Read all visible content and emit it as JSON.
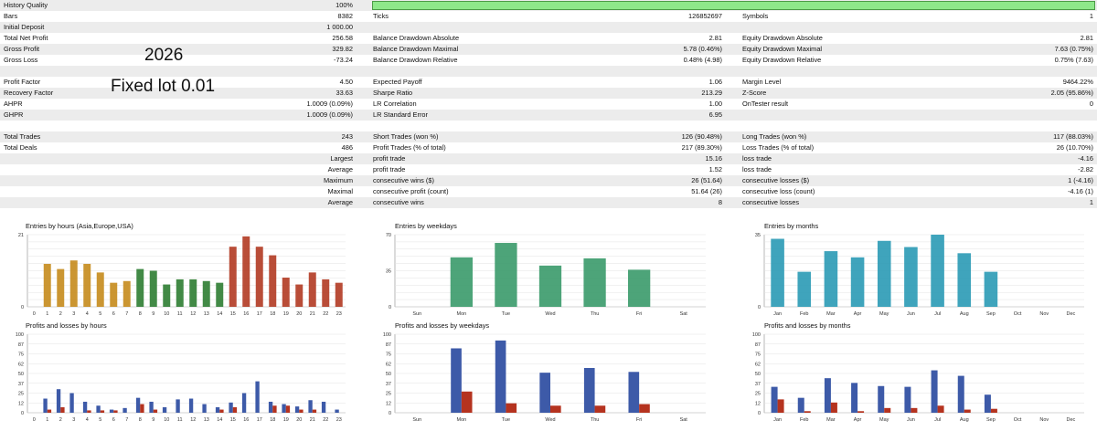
{
  "history_quality": {
    "label": "History Quality",
    "value": "100%"
  },
  "rows": [
    {
      "y": 12,
      "c1": [
        "Bars",
        "8382"
      ],
      "c2": [
        "Ticks",
        "126852697"
      ],
      "c3": [
        "Symbols",
        "1"
      ]
    },
    {
      "y": 24,
      "c1": [
        "Initial Deposit",
        "1 000.00"
      ],
      "c2": [
        "",
        ""
      ],
      "c3": [
        "",
        ""
      ]
    },
    {
      "y": 36,
      "c1": [
        "Total Net Profit",
        "256.58"
      ],
      "c2": [
        "Balance Drawdown Absolute",
        "2.81"
      ],
      "c3": [
        "Equity Drawdown Absolute",
        "2.81"
      ]
    },
    {
      "y": 48,
      "c1": [
        "Gross Profit",
        "329.82"
      ],
      "c2": [
        "Balance Drawdown Maximal",
        "5.78 (0.46%)"
      ],
      "c3": [
        "Equity Drawdown Maximal",
        "7.63 (0.75%)"
      ]
    },
    {
      "y": 60,
      "c1": [
        "Gross Loss",
        "-73.24"
      ],
      "c2": [
        "Balance Drawdown Relative",
        "0.48% (4.98)"
      ],
      "c3": [
        "Equity Drawdown Relative",
        "0.75% (7.63)"
      ]
    },
    {
      "y": 72,
      "c1": [
        "",
        ""
      ],
      "c2": [
        "",
        ""
      ],
      "c3": [
        "",
        ""
      ]
    },
    {
      "y": 84,
      "c1": [
        "Profit Factor",
        "4.50"
      ],
      "c2": [
        "Expected Payoff",
        "1.06"
      ],
      "c3": [
        "Margin Level",
        "9464.22%"
      ]
    },
    {
      "y": 96,
      "c1": [
        "Recovery Factor",
        "33.63"
      ],
      "c2": [
        "Sharpe Ratio",
        "213.29"
      ],
      "c3": [
        "Z-Score",
        "2.05 (95.86%)"
      ]
    },
    {
      "y": 108,
      "c1": [
        "AHPR",
        "1.0009 (0.09%)"
      ],
      "c2": [
        "LR Correlation",
        "1.00"
      ],
      "c3": [
        "OnTester result",
        "0"
      ]
    },
    {
      "y": 120,
      "c1": [
        "GHPR",
        "1.0009 (0.09%)"
      ],
      "c2": [
        "LR Standard Error",
        "6.95"
      ],
      "c3": [
        "",
        ""
      ]
    },
    {
      "y": 132,
      "c1": [
        "",
        ""
      ],
      "c2": [
        "",
        ""
      ],
      "c3": [
        "",
        ""
      ]
    },
    {
      "y": 144,
      "c1": [
        "Total Trades",
        "243"
      ],
      "c2": [
        "Short Trades (won %)",
        "126 (90.48%)"
      ],
      "c3": [
        "Long Trades (won %)",
        "117 (88.03%)"
      ]
    },
    {
      "y": 156,
      "c1": [
        "Total Deals",
        "486"
      ],
      "c2": [
        "Profit Trades (% of total)",
        "217 (89.30%)"
      ],
      "c3": [
        "Loss Trades (% of total)",
        "26 (10.70%)"
      ]
    },
    {
      "y": 168,
      "c1": [
        "",
        "Largest"
      ],
      "c2": [
        "profit trade",
        "15.16"
      ],
      "c3": [
        "loss trade",
        "-4.16"
      ]
    },
    {
      "y": 180,
      "c1": [
        "",
        "Average"
      ],
      "c2": [
        "profit trade",
        "1.52"
      ],
      "c3": [
        "loss trade",
        "-2.82"
      ]
    },
    {
      "y": 192,
      "c1": [
        "",
        "Maximum"
      ],
      "c2": [
        "consecutive wins ($)",
        "26 (51.64)"
      ],
      "c3": [
        "consecutive losses ($)",
        "1 (-4.16)"
      ]
    },
    {
      "y": 204,
      "c1": [
        "",
        "Maximal"
      ],
      "c2": [
        "consecutive profit (count)",
        "51.64 (26)"
      ],
      "c3": [
        "consecutive loss (count)",
        "-4.16 (1)"
      ]
    },
    {
      "y": 216,
      "c1": [
        "",
        "Average"
      ],
      "c2": [
        "consecutive wins",
        "8"
      ],
      "c3": [
        "consecutive losses",
        "1"
      ]
    }
  ],
  "overlay": {
    "year": "2026",
    "lot": "Fixed lot 0.01"
  },
  "charts": {
    "hours": {
      "title": "Entries by hours (Asia,Europe,USA)",
      "ymax": 21,
      "ticks": [
        "21",
        "0"
      ],
      "labels": [
        "0",
        "1",
        "2",
        "3",
        "4",
        "5",
        "6",
        "7",
        "8",
        "9",
        "10",
        "11",
        "12",
        "13",
        "14",
        "15",
        "16",
        "17",
        "18",
        "19",
        "20",
        "21",
        "22",
        "23"
      ],
      "values": [
        0,
        12.5,
        11,
        13.5,
        12.5,
        10,
        7,
        7.5,
        11,
        10.5,
        6.5,
        8,
        8,
        7.5,
        7,
        17.5,
        20.5,
        17.5,
        15,
        8.5,
        6.5,
        10,
        8,
        7
      ],
      "colors": [
        "#c58b1c",
        "#c58b1c",
        "#c58b1c",
        "#c58b1c",
        "#c58b1c",
        "#c58b1c",
        "#c58b1c",
        "#c58b1c",
        "#2e7d32",
        "#2e7d32",
        "#2e7d32",
        "#2e7d32",
        "#2e7d32",
        "#2e7d32",
        "#2e7d32",
        "#b13a22",
        "#b13a22",
        "#b13a22",
        "#b13a22",
        "#b13a22",
        "#b13a22",
        "#b13a22",
        "#b13a22",
        "#b13a22"
      ]
    },
    "weekdays": {
      "title": "Entries by weekdays",
      "ymax": 70,
      "ticks": [
        "70",
        "35",
        "0"
      ],
      "labels": [
        "Sun",
        "Mon",
        "Tue",
        "Wed",
        "Thu",
        "Fri",
        "Sat"
      ],
      "values": [
        0,
        48,
        62,
        40,
        47,
        36,
        0
      ],
      "color": "#3a9a6a"
    },
    "months": {
      "title": "Entries by months",
      "ymax": 35,
      "ticks": [
        "35",
        "0"
      ],
      "labels": [
        "Jan",
        "Feb",
        "Mar",
        "Apr",
        "May",
        "Jun",
        "Jul",
        "Aug",
        "Sep",
        "Oct",
        "Nov",
        "Dec"
      ],
      "values": [
        33,
        17,
        27,
        24,
        32,
        29,
        35,
        26,
        17,
        0,
        0,
        0
      ],
      "color": "#2a9ab5"
    },
    "pl_hours": {
      "title": "Profits and losses by hours",
      "ymax": 100,
      "ticks": [
        "100",
        "87",
        "75",
        "62",
        "50",
        "37",
        "25",
        "12",
        "0"
      ],
      "labels": [
        "0",
        "1",
        "2",
        "3",
        "4",
        "5",
        "6",
        "7",
        "8",
        "9",
        "10",
        "11",
        "12",
        "13",
        "14",
        "15",
        "16",
        "17",
        "18",
        "19",
        "20",
        "21",
        "22",
        "23"
      ],
      "profits": [
        0,
        18,
        30,
        25,
        14,
        9,
        4,
        6,
        19,
        14,
        7,
        17,
        18,
        11,
        7,
        13,
        25,
        40,
        14,
        11,
        8,
        16,
        14,
        4
      ],
      "losses": [
        0,
        4,
        7,
        0,
        3,
        3,
        3,
        0,
        11,
        4,
        0,
        0,
        0,
        0,
        4,
        7,
        0,
        0,
        9,
        9,
        4,
        4,
        0,
        0
      ]
    },
    "pl_weekdays": {
      "title": "Profits and losses by weekdays",
      "ymax": 100,
      "ticks": [
        "100",
        "87",
        "75",
        "62",
        "50",
        "37",
        "25",
        "12",
        "0"
      ],
      "labels": [
        "Sun",
        "Mon",
        "Tue",
        "Wed",
        "Thu",
        "Fri",
        "Sat"
      ],
      "profits": [
        0,
        82,
        92,
        51,
        57,
        52,
        0
      ],
      "losses": [
        0,
        27,
        12,
        9,
        9,
        11,
        0
      ]
    },
    "pl_months": {
      "title": "Profits and losses by months",
      "ymax": 100,
      "ticks": [
        "100",
        "87",
        "75",
        "62",
        "50",
        "37",
        "25",
        "12",
        "0"
      ],
      "labels": [
        "Jan",
        "Feb",
        "Mar",
        "Apr",
        "May",
        "Jun",
        "Jul",
        "Aug",
        "Sep",
        "Oct",
        "Nov",
        "Dec"
      ],
      "profits": [
        33,
        19,
        44,
        38,
        34,
        33,
        54,
        47,
        23,
        0,
        0,
        0
      ],
      "losses": [
        17,
        2,
        13,
        2,
        6,
        6,
        9,
        4,
        5,
        0,
        0,
        0
      ]
    }
  },
  "colors": {
    "profit": "#3d5aa8",
    "loss": "#b5331f",
    "history_bar": "#8ee88a"
  }
}
